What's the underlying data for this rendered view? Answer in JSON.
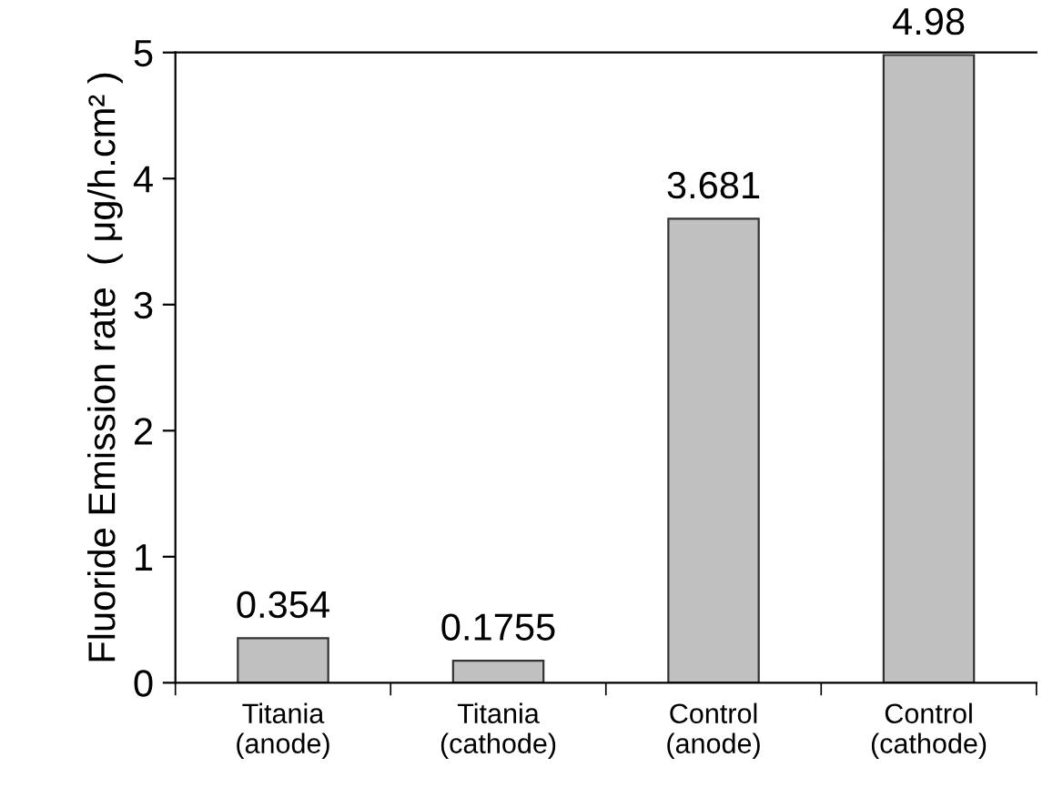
{
  "chart_data": {
    "type": "bar",
    "ylabel": "Fluoride Emission rate  ( μg/h.cm² )",
    "categories": [
      "Titania\n(anode)",
      "Titania\n(cathode)",
      "Control\n(anode)",
      "Control\n(cathode)"
    ],
    "values": [
      0.354,
      0.1755,
      3.681,
      4.98
    ],
    "color": "#c0c0c0",
    "ylim": [
      0,
      5
    ],
    "yticks": [
      0,
      1,
      2,
      3,
      4,
      5
    ],
    "data_labels": true,
    "grid": false,
    "legend": false
  }
}
